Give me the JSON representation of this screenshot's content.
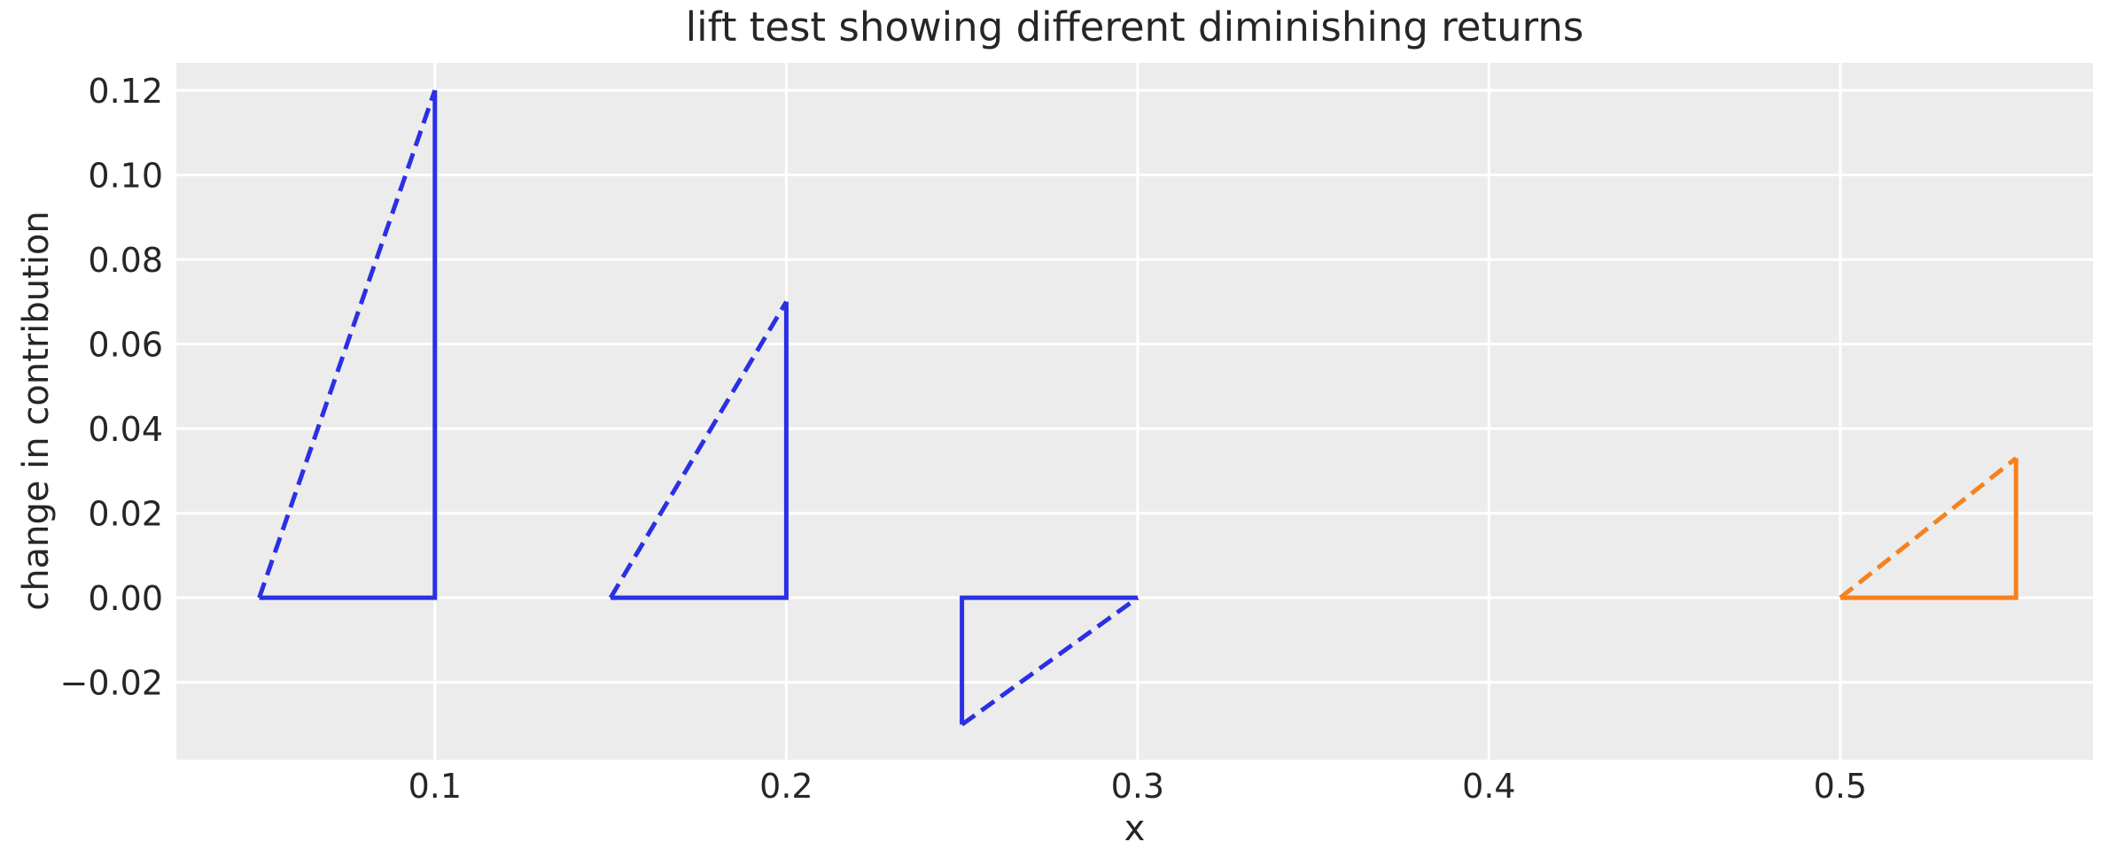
{
  "chart": {
    "title": "lift test showing different diminishing returns",
    "xlabel": "x",
    "ylabel": "change in contribution"
  },
  "chart_data": {
    "type": "line",
    "title": "lift test showing different diminishing returns",
    "xlabel": "x",
    "ylabel": "change in contribution",
    "xlim": [
      0.0264,
      0.5719
    ],
    "ylim": [
      -0.0383,
      0.1265
    ],
    "grid": true,
    "legend": "none",
    "xticks": [
      {
        "value": 0.1,
        "label": "0.1"
      },
      {
        "value": 0.2,
        "label": "0.2"
      },
      {
        "value": 0.3,
        "label": "0.3"
      },
      {
        "value": 0.4,
        "label": "0.4"
      },
      {
        "value": 0.5,
        "label": "0.5"
      }
    ],
    "yticks": [
      {
        "value": -0.02,
        "label": "−0.02"
      },
      {
        "value": 0.0,
        "label": "0.00"
      },
      {
        "value": 0.02,
        "label": "0.02"
      },
      {
        "value": 0.04,
        "label": "0.04"
      },
      {
        "value": 0.06,
        "label": "0.06"
      },
      {
        "value": 0.08,
        "label": "0.08"
      },
      {
        "value": 0.1,
        "label": "0.10"
      },
      {
        "value": 0.12,
        "label": "0.12"
      }
    ],
    "styles": {
      "axes_background": "#ececec",
      "gridline_color": "#ffffff",
      "text_color": "#262626",
      "blue": "#2b30e3",
      "orange": "#f5811f"
    },
    "series": [
      {
        "name": "lift-triangle-1",
        "color_key": "blue",
        "x_start": 0.05,
        "x_end": 0.1,
        "base_y": 0.0,
        "delta_y": 0.12,
        "dashed_line": [
          [
            0.05,
            0.0
          ],
          [
            0.1,
            0.12
          ]
        ],
        "solid_path": [
          [
            0.1,
            0.12
          ],
          [
            0.1,
            0.0
          ],
          [
            0.05,
            0.0
          ]
        ]
      },
      {
        "name": "lift-triangle-2",
        "color_key": "blue",
        "x_start": 0.15,
        "x_end": 0.2,
        "base_y": 0.0,
        "delta_y": 0.07,
        "dashed_line": [
          [
            0.15,
            0.0
          ],
          [
            0.2,
            0.07
          ]
        ],
        "solid_path": [
          [
            0.2,
            0.07
          ],
          [
            0.2,
            0.0
          ],
          [
            0.15,
            0.0
          ]
        ]
      },
      {
        "name": "lift-triangle-3",
        "color_key": "blue",
        "x_start": 0.25,
        "x_end": 0.3,
        "base_y": 0.0,
        "delta_y": -0.03,
        "dashed_line": [
          [
            0.25,
            -0.03
          ],
          [
            0.3,
            0.0
          ]
        ],
        "solid_path": [
          [
            0.25,
            -0.03
          ],
          [
            0.25,
            0.0
          ],
          [
            0.3,
            0.0
          ]
        ]
      },
      {
        "name": "lift-triangle-4",
        "color_key": "orange",
        "x_start": 0.5,
        "x_end": 0.55,
        "base_y": 0.0,
        "delta_y": 0.033,
        "dashed_line": [
          [
            0.5,
            0.0
          ],
          [
            0.55,
            0.033
          ]
        ],
        "solid_path": [
          [
            0.55,
            0.033
          ],
          [
            0.55,
            0.0
          ],
          [
            0.5,
            0.0
          ]
        ]
      }
    ]
  }
}
